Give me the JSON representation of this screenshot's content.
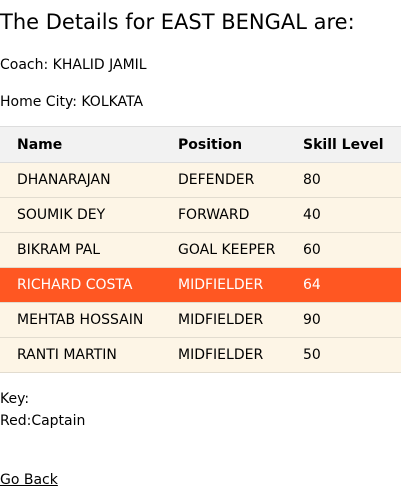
{
  "header": {
    "title": "The Details for EAST BENGAL are:"
  },
  "team": {
    "coach_label": "Coach:",
    "coach": "KHALID JAMIL",
    "city_label": "Home City:",
    "city": "KOLKATA"
  },
  "table": {
    "columns": [
      "Name",
      "Position",
      "Skill Level"
    ],
    "rows": [
      {
        "name": "DHANARAJAN",
        "position": "DEFENDER",
        "skill": "80"
      },
      {
        "name": "SOUMIK DEY",
        "position": "FORWARD",
        "skill": "40"
      },
      {
        "name": "BIKRAM PAL",
        "position": "GOAL KEEPER",
        "skill": "60"
      },
      {
        "name": "RICHARD COSTA",
        "position": "MIDFIELDER",
        "skill": "64"
      },
      {
        "name": "MEHTAB HOSSAIN",
        "position": "MIDFIELDER",
        "skill": "90"
      },
      {
        "name": "RANTI MARTIN",
        "position": "MIDFIELDER",
        "skill": "50"
      }
    ]
  },
  "key": {
    "label": "Key:",
    "captain": "Red:Captain"
  },
  "colors": {
    "captain_row": "#ff5722",
    "row_background": "#fdf5e6",
    "header_background": "#f2f2f2"
  },
  "nav": {
    "go_back": "Go Back"
  }
}
